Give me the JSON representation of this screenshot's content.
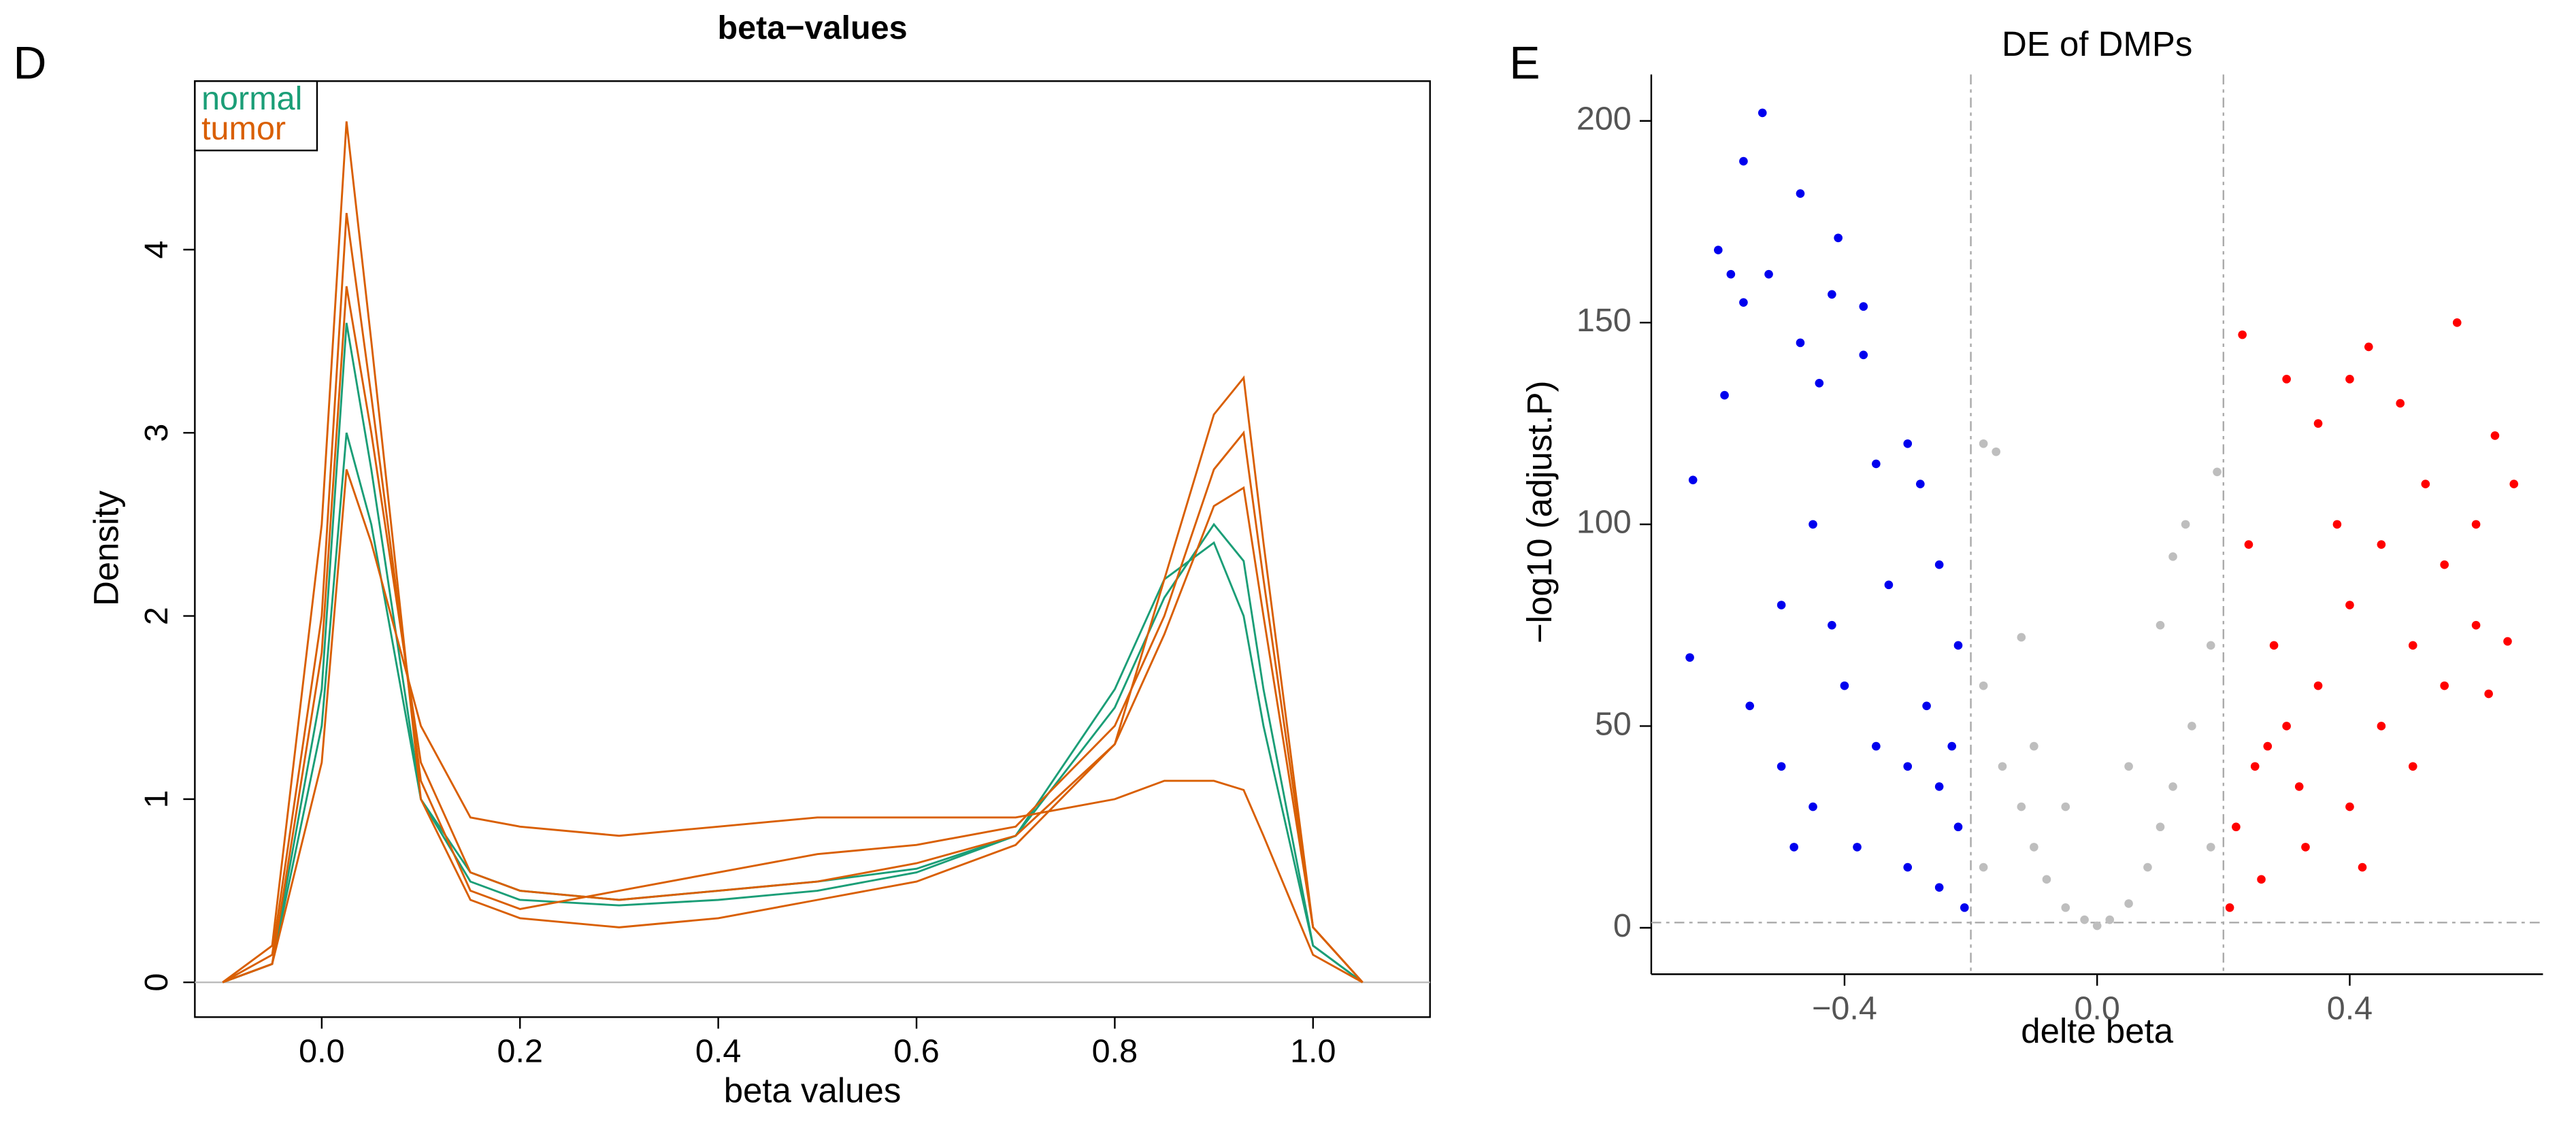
{
  "chart_data": [
    {
      "type": "line",
      "panel_label": "D",
      "title": "beta−values",
      "xlabel": "beta values",
      "ylabel": "Density",
      "x": [
        -0.1,
        -0.05,
        0,
        0.025,
        0.05,
        0.1,
        0.15,
        0.2,
        0.3,
        0.4,
        0.5,
        0.6,
        0.7,
        0.8,
        0.85,
        0.9,
        0.93,
        0.95,
        1.0,
        1.05
      ],
      "series": [
        {
          "name": "normal",
          "color": "#1b9e77",
          "values": [
            [
              0,
              0.1,
              1.6,
              3.6,
              2.8,
              1.0,
              0.55,
              0.45,
              0.42,
              0.45,
              0.5,
              0.6,
              0.8,
              1.5,
              2.1,
              2.5,
              2.3,
              1.6,
              0.2,
              0
            ],
            [
              0,
              0.1,
              1.4,
              3.0,
              2.5,
              1.0,
              0.6,
              0.5,
              0.45,
              0.5,
              0.55,
              0.62,
              0.8,
              1.6,
              2.2,
              2.4,
              2.0,
              1.4,
              0.2,
              0
            ]
          ]
        },
        {
          "name": "tumor",
          "color": "#d95f02",
          "values": [
            [
              0,
              0.1,
              1.8,
              3.8,
              3.0,
              1.2,
              0.6,
              0.5,
              0.45,
              0.5,
              0.55,
              0.65,
              0.8,
              1.3,
              1.9,
              2.6,
              2.7,
              2.0,
              0.3,
              0
            ],
            [
              0,
              0.2,
              2.5,
              4.7,
              3.5,
              1.0,
              0.45,
              0.35,
              0.3,
              0.35,
              0.45,
              0.55,
              0.75,
              1.3,
              2.2,
              3.1,
              3.3,
              2.4,
              0.3,
              0
            ],
            [
              0,
              0.1,
              1.2,
              2.8,
              2.4,
              1.4,
              0.9,
              0.85,
              0.8,
              0.85,
              0.9,
              0.9,
              0.9,
              1.0,
              1.1,
              1.1,
              1.05,
              0.8,
              0.15,
              0
            ],
            [
              0,
              0.15,
              2.0,
              4.2,
              3.2,
              1.1,
              0.5,
              0.4,
              0.5,
              0.6,
              0.7,
              0.75,
              0.85,
              1.4,
              2.0,
              2.8,
              3.0,
              2.2,
              0.3,
              0
            ]
          ]
        }
      ],
      "xlim": [
        -0.128,
        1.118
      ],
      "ylim": [
        -0.19,
        4.92
      ],
      "xticks": [
        {
          "value": 0,
          "label": "0.0"
        },
        0.2,
        0.4,
        0.6,
        0.8,
        {
          "value": 1,
          "label": "1.0"
        }
      ],
      "yticks": [
        0,
        1,
        2,
        3,
        4
      ],
      "legend": "top-left"
    },
    {
      "type": "scatter",
      "panel_label": "E",
      "title": "DE of DMPs",
      "xlabel": "delte beta",
      "ylabel": "−log10 (adjust.P)",
      "series": [
        {
          "color": "#0000ee",
          "x": [
            -0.64,
            -0.645,
            -0.6,
            -0.59,
            -0.58,
            -0.56,
            -0.56,
            -0.53,
            -0.52,
            -0.47,
            -0.47,
            -0.44,
            -0.42,
            -0.41,
            -0.37,
            -0.37,
            -0.5,
            -0.55,
            -0.45,
            -0.35,
            -0.3,
            -0.28,
            -0.25,
            -0.22,
            -0.4,
            -0.35,
            -0.3,
            -0.25,
            -0.22,
            -0.45,
            -0.38,
            -0.3,
            -0.25,
            -0.21,
            -0.5,
            -0.42,
            -0.33,
            -0.27,
            -0.23,
            -0.48
          ],
          "values": [
            111,
            67,
            168,
            132,
            162,
            190,
            155,
            202,
            162,
            182,
            145,
            135,
            157,
            171,
            154,
            142,
            80,
            55,
            100,
            115,
            120,
            110,
            90,
            70,
            60,
            45,
            40,
            35,
            25,
            30,
            20,
            15,
            10,
            5,
            40,
            75,
            85,
            55,
            45,
            20
          ]
        },
        {
          "color": "#bebebe",
          "x": [
            -0.18,
            -0.16,
            -0.18,
            -0.15,
            -0.12,
            -0.1,
            -0.08,
            -0.05,
            -0.02,
            0,
            0.02,
            0.05,
            0.08,
            0.1,
            0.12,
            0.15,
            0.18,
            0.14,
            0.12,
            -0.12,
            -0.1,
            0.05,
            0.1,
            -0.18,
            0.18,
            0.19,
            -0.05
          ],
          "values": [
            120,
            118,
            60,
            40,
            30,
            20,
            12,
            5,
            2,
            0.5,
            2,
            6,
            15,
            25,
            35,
            50,
            70,
            100,
            92,
            72,
            45,
            40,
            75,
            15,
            20,
            113,
            30
          ]
        },
        {
          "color": "#ff0000",
          "x": [
            0.23,
            0.3,
            0.35,
            0.4,
            0.43,
            0.48,
            0.57,
            0.63,
            0.66,
            0.6,
            0.65,
            0.62,
            0.55,
            0.5,
            0.45,
            0.4,
            0.35,
            0.3,
            0.25,
            0.22,
            0.21,
            0.26,
            0.33,
            0.4,
            0.5,
            0.55,
            0.45,
            0.38,
            0.28,
            0.24,
            0.52,
            0.6,
            0.32,
            0.42,
            0.27
          ],
          "values": [
            147,
            136,
            125,
            136,
            144,
            130,
            150,
            122,
            110,
            100,
            71,
            58,
            90,
            70,
            95,
            80,
            60,
            50,
            40,
            25,
            5,
            12,
            20,
            30,
            40,
            60,
            50,
            100,
            70,
            95,
            110,
            75,
            35,
            15,
            45
          ]
        }
      ],
      "thresholds": {
        "x": [
          -0.2,
          0.2
        ],
        "y": 1.3
      },
      "xlim": [
        -0.706,
        0.706
      ],
      "ylim": [
        -11.5,
        211.5
      ],
      "xticks": [
        {
          "value": -0.4,
          "label": "−0.4"
        },
        {
          "value": 0,
          "label": "0.0"
        },
        0.4
      ],
      "yticks": [
        0,
        50,
        100,
        150,
        200
      ]
    }
  ]
}
